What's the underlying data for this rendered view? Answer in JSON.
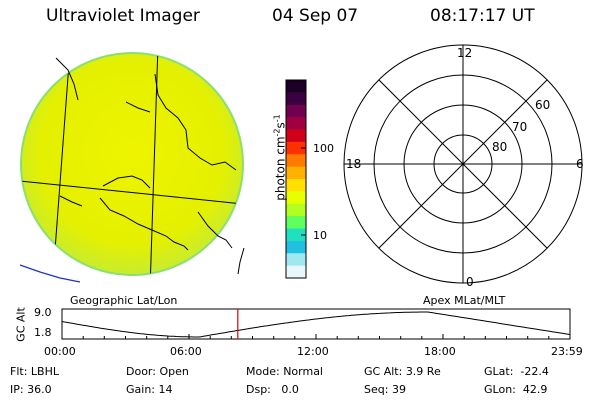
{
  "header": {
    "title": "Ultraviolet Imager",
    "date": "04 Sep 07",
    "time": "08:17:17 UT"
  },
  "colorbar": {
    "unit_prefix": "photon cm",
    "unit_exp1": "-2",
    "unit_mid": "s",
    "unit_exp2": "-1",
    "ticks": [
      "100",
      "10"
    ],
    "colors_top_to_bottom": [
      "#1a0026",
      "#3a0040",
      "#700050",
      "#a00040",
      "#d0001a",
      "#ff3000",
      "#ff7a00",
      "#ffb000",
      "#ffe000",
      "#e8ff00",
      "#b0ff20",
      "#60ff60",
      "#20e0c0",
      "#20c0e0",
      "#a0e8f0",
      "#e8f8fa"
    ]
  },
  "polar": {
    "mlt_labels": {
      "top": "12",
      "left": "18",
      "right": "6",
      "bottom": "0"
    },
    "lat_labels": [
      "60",
      "70",
      "80"
    ]
  },
  "earth_panel": {
    "fill_color": "#e8f200"
  },
  "timeline": {
    "left_label": "Geographic Lat/Lon",
    "right_label": "Apex MLat/MLT",
    "axis_title": "GC Alt",
    "y_max": "9.0",
    "y_min": "1.8",
    "time_ticks": [
      "00:00",
      "06:00",
      "12:00",
      "18:00",
      "23:59"
    ],
    "marker_fraction": 0.346
  },
  "info": {
    "row1": {
      "flt_label": "Flt:",
      "flt_value": "LBHL",
      "door_label": "Door:",
      "door_value": "Open",
      "mode_label": "Mode:",
      "mode_value": "Normal",
      "gcalt_label": "GC Alt:",
      "gcalt_value": "3.9 Re",
      "glat_label": "GLat:",
      "glat_value": "-22.4"
    },
    "row2": {
      "ip_label": "IP:",
      "ip_value": "36.0",
      "gain_label": "Gain:",
      "gain_value": "14",
      "dsp_label": "Dsp:",
      "dsp_value": "0.0",
      "seq_label": "Seq:",
      "seq_value": "39",
      "glon_label": "GLon:",
      "glon_value": "42.9"
    }
  }
}
